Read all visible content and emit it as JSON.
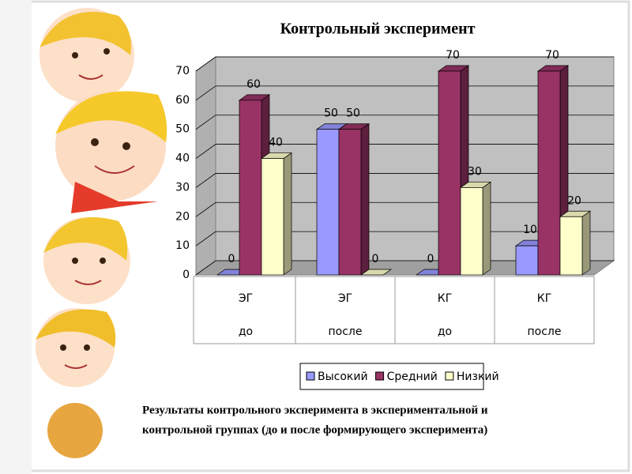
{
  "chart_data": {
    "type": "bar3d",
    "title": "Контрольный эксперимент",
    "categories": [
      "ЭГ",
      "ЭГ",
      "КГ",
      "КГ"
    ],
    "subcategories": [
      "до",
      "после",
      "до",
      "после"
    ],
    "series": [
      {
        "name": "Высокий",
        "color": "#9999ff",
        "values": [
          0,
          50,
          0,
          10
        ]
      },
      {
        "name": "Средний",
        "color": "#993366",
        "values": [
          60,
          50,
          70,
          70
        ]
      },
      {
        "name": "Низкий",
        "color": "#ffffcc",
        "values": [
          40,
          0,
          30,
          20
        ]
      }
    ],
    "ylim": [
      0,
      70
    ],
    "yticks": [
      0,
      10,
      20,
      30,
      40,
      50,
      60,
      70
    ],
    "grid": true,
    "caption": [
      "Результаты контрольного эксперимента в экспериментальной и",
      "контрольной группах (до и после формирующего эксперимента)"
    ]
  }
}
